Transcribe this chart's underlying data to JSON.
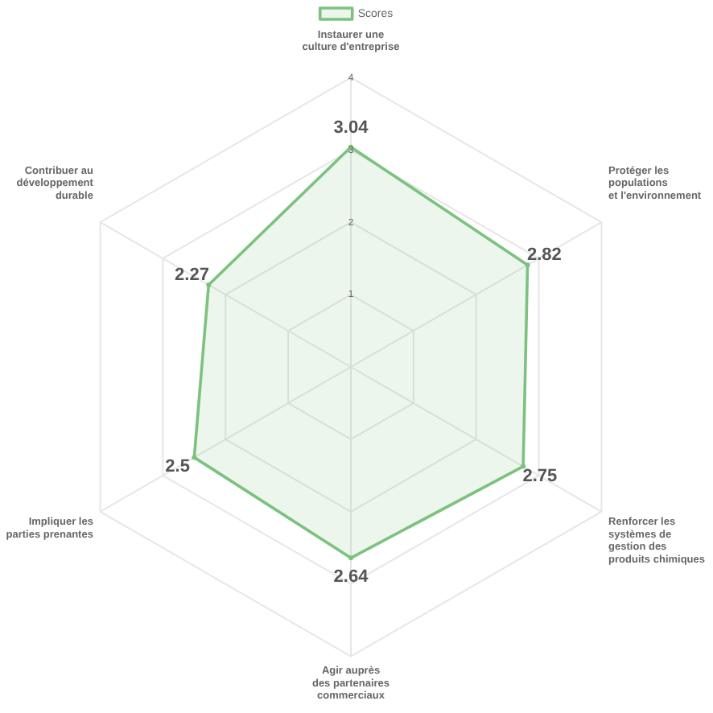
{
  "chart_data": {
    "type": "radar",
    "categories": [
      "Instaurer une\nculture d'entreprise",
      "Protéger les\npopulations\net l'environnement",
      "Renforcer les\nsystèmes de\ngestion des\nproduits chimiques",
      "Agir auprès\ndes partenaires\ncommerciaux",
      "Impliquer les\nparties prenantes",
      "Contribuer au\ndéveloppement\ndurable"
    ],
    "series": [
      {
        "name": "Scores",
        "color": "#7cc27e",
        "values": [
          3.04,
          2.82,
          2.75,
          2.64,
          2.5,
          2.27
        ]
      }
    ],
    "ylim": [
      0,
      4
    ],
    "yticks": [
      1,
      2,
      3,
      4
    ],
    "grid": true,
    "legend": "top",
    "marker": "circle",
    "data_labels": true
  }
}
